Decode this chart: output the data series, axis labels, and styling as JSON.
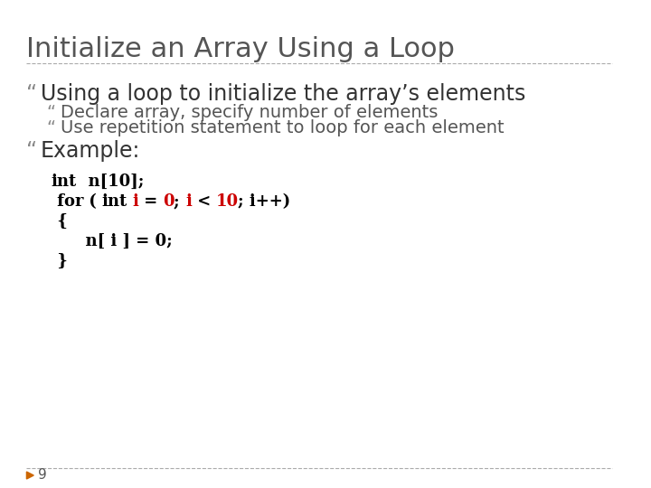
{
  "title": "Initialize an Array Using a Loop",
  "background_color": "#ffffff",
  "title_color": "#555555",
  "title_fontsize": 22,
  "bullet_color": "#555555",
  "bullet_marker": "“",
  "slide_number": "9",
  "separator_color": "#aaaaaa",
  "items": [
    {
      "level": 1,
      "text": "Using a loop to initialize the array’s elements",
      "color": "#333333",
      "fontsize": 17,
      "bold": false
    },
    {
      "level": 2,
      "text": "Declare array, specify number of elements",
      "color": "#555555",
      "fontsize": 14,
      "bold": false
    },
    {
      "level": 2,
      "text": "Use repetition statement to loop for each element",
      "color": "#555555",
      "fontsize": 14,
      "bold": false
    },
    {
      "level": 1,
      "text": "Example:",
      "color": "#333333",
      "fontsize": 17,
      "bold": false
    }
  ],
  "code_lines": [
    {
      "parts": [
        {
          "text": "int",
          "color": "#000000",
          "bold": true
        },
        {
          "text": "  n[10];",
          "color": "#000000",
          "bold": true
        }
      ],
      "indent": 0
    },
    {
      "parts": [
        {
          "text": " for",
          "color": "#000000",
          "bold": true
        },
        {
          "text": " ( ",
          "color": "#000000",
          "bold": true
        },
        {
          "text": "int",
          "color": "#000000",
          "bold": true
        },
        {
          "text": " ",
          "color": "#000000",
          "bold": true
        },
        {
          "text": "i",
          "color": "#cc0000",
          "bold": true
        },
        {
          "text": " = ",
          "color": "#000000",
          "bold": true
        },
        {
          "text": "0",
          "color": "#cc0000",
          "bold": true
        },
        {
          "text": "; ",
          "color": "#000000",
          "bold": true
        },
        {
          "text": "i",
          "color": "#cc0000",
          "bold": true
        },
        {
          "text": " < ",
          "color": "#000000",
          "bold": true
        },
        {
          "text": "10",
          "color": "#cc0000",
          "bold": true
        },
        {
          "text": "; i++)",
          "color": "#000000",
          "bold": true
        }
      ],
      "indent": 0
    },
    {
      "parts": [
        {
          "text": " {",
          "color": "#000000",
          "bold": true
        }
      ],
      "indent": 0
    },
    {
      "parts": [
        {
          "text": "      n[ i ] = 0;",
          "color": "#000000",
          "bold": true
        }
      ],
      "indent": 1
    },
    {
      "parts": [
        {
          "text": " }",
          "color": "#000000",
          "bold": true
        }
      ],
      "indent": 0
    }
  ],
  "arrow_color": "#cc6600",
  "page_num_color": "#555555",
  "page_num_fontsize": 11
}
